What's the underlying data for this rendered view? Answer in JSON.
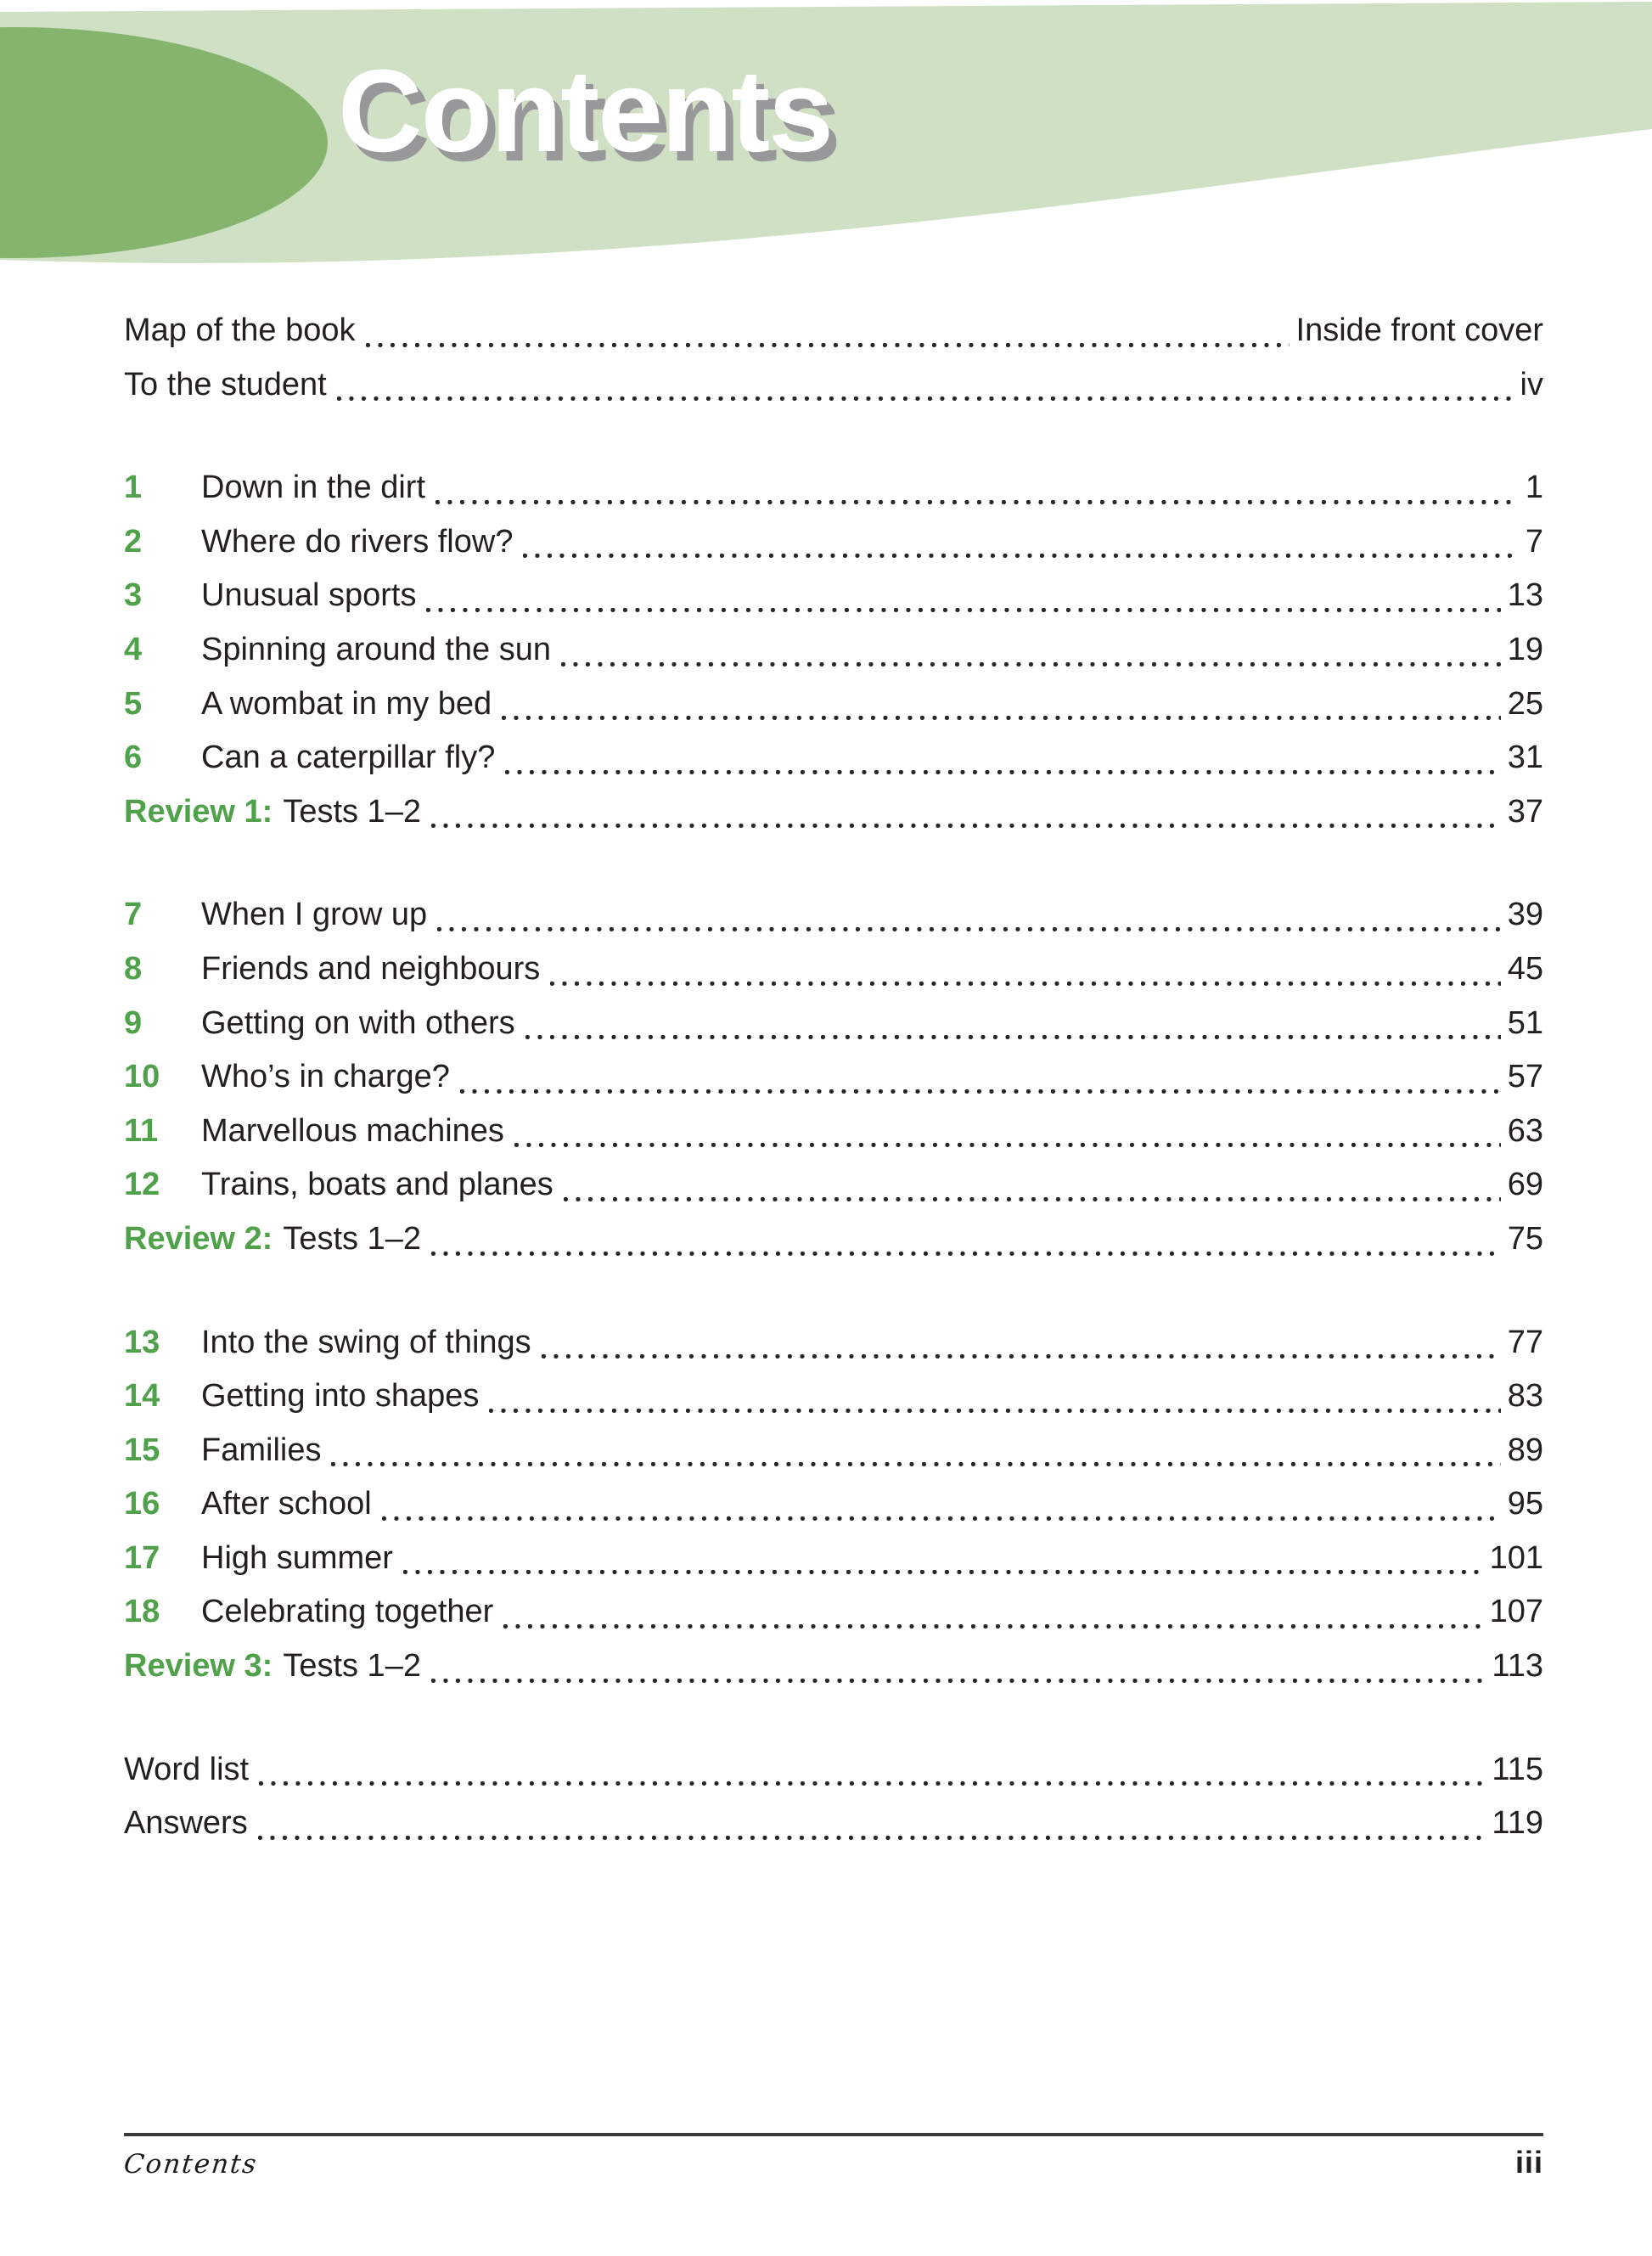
{
  "header": {
    "title": "Contents"
  },
  "colors": {
    "banner_light_green": "#cfe0c4",
    "banner_dark_green": "#85b46e",
    "accent_green": "#4fa24a",
    "title_shadow_gray": "#98989a",
    "text_dark": "#231f20"
  },
  "front_matter": [
    {
      "title": "Map of the book",
      "page": "Inside front cover"
    },
    {
      "title": "To the student",
      "page": "iv"
    }
  ],
  "sections": [
    {
      "rows": [
        {
          "num": "1",
          "title": "Down in the dirt",
          "page": "1"
        },
        {
          "num": "2",
          "title": "Where do rivers flow?",
          "page": "7"
        },
        {
          "num": "3",
          "title": "Unusual sports",
          "page": "13"
        },
        {
          "num": "4",
          "title": "Spinning around the sun",
          "page": "19"
        },
        {
          "num": "5",
          "title": "A wombat in my bed",
          "page": "25"
        },
        {
          "num": "6",
          "title": "Can a caterpillar fly?",
          "page": "31"
        },
        {
          "review_label": "Review 1:",
          "title": "Tests 1–2",
          "page": "37"
        }
      ]
    },
    {
      "rows": [
        {
          "num": "7",
          "title": "When I grow up",
          "page": "39"
        },
        {
          "num": "8",
          "title": "Friends and neighbours",
          "page": "45"
        },
        {
          "num": "9",
          "title": "Getting on with others",
          "page": "51"
        },
        {
          "num": "10",
          "title": "Who’s in charge?",
          "page": "57"
        },
        {
          "num": "11",
          "title": "Marvellous machines",
          "page": "63"
        },
        {
          "num": "12",
          "title": "Trains, boats and planes",
          "page": "69"
        },
        {
          "review_label": "Review 2:",
          "title": "Tests 1–2",
          "page": "75"
        }
      ]
    },
    {
      "rows": [
        {
          "num": "13",
          "title": "Into the swing of things",
          "page": "77"
        },
        {
          "num": "14",
          "title": "Getting into shapes",
          "page": "83"
        },
        {
          "num": "15",
          "title": "Families",
          "page": "89"
        },
        {
          "num": "16",
          "title": "After school",
          "page": "95"
        },
        {
          "num": "17",
          "title": "High summer",
          "page": "101"
        },
        {
          "num": "18",
          "title": "Celebrating together",
          "page": "107"
        },
        {
          "review_label": "Review 3:",
          "title": "Tests 1–2",
          "page": "113"
        }
      ]
    },
    {
      "rows": [
        {
          "title": "Word list",
          "page": "115"
        },
        {
          "title": "Answers",
          "page": "119"
        }
      ]
    }
  ],
  "footer": {
    "label": "Contents",
    "page_number": "iii"
  }
}
